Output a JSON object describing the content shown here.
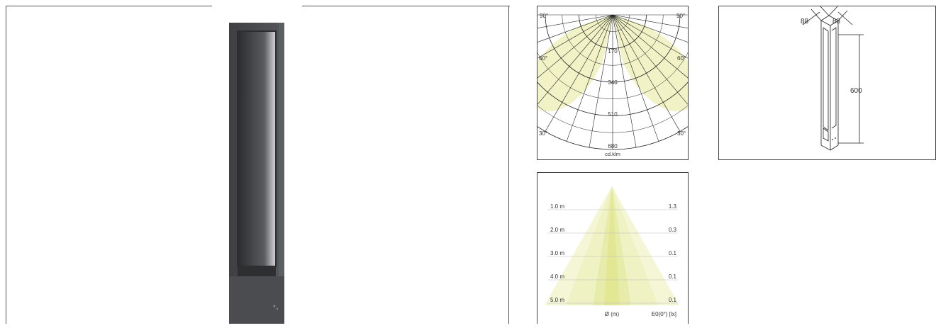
{
  "product": {
    "image_name": "bollard-light-product-photo",
    "body_color": "#4a4c4f"
  },
  "polar_diagram": {
    "angle_labels": {
      "top_left": "90°",
      "top_right": "90°",
      "mid_left": "60°",
      "mid_right": "60°",
      "bottom_left": "30°",
      "bottom_right": "30°"
    },
    "radial_labels": [
      "170",
      "340",
      "510",
      "680"
    ],
    "unit_label": "cd.klm",
    "fill_color": "#f1f3c6"
  },
  "dimension_drawing": {
    "width_label_1": "88",
    "width_label_2": "88",
    "height_label": "600"
  },
  "illuminance_diagram": {
    "rows": [
      {
        "distance": "1.0 m",
        "lux": "1.3"
      },
      {
        "distance": "2.0 m",
        "lux": "0.3"
      },
      {
        "distance": "3.0 m",
        "lux": "0.1"
      },
      {
        "distance": "4.0 m",
        "lux": "0.1"
      },
      {
        "distance": "5.0 m",
        "lux": "0.1"
      }
    ],
    "footer_diameter": "Ø (m)",
    "footer_lux": "E0(0°) [lx]"
  }
}
